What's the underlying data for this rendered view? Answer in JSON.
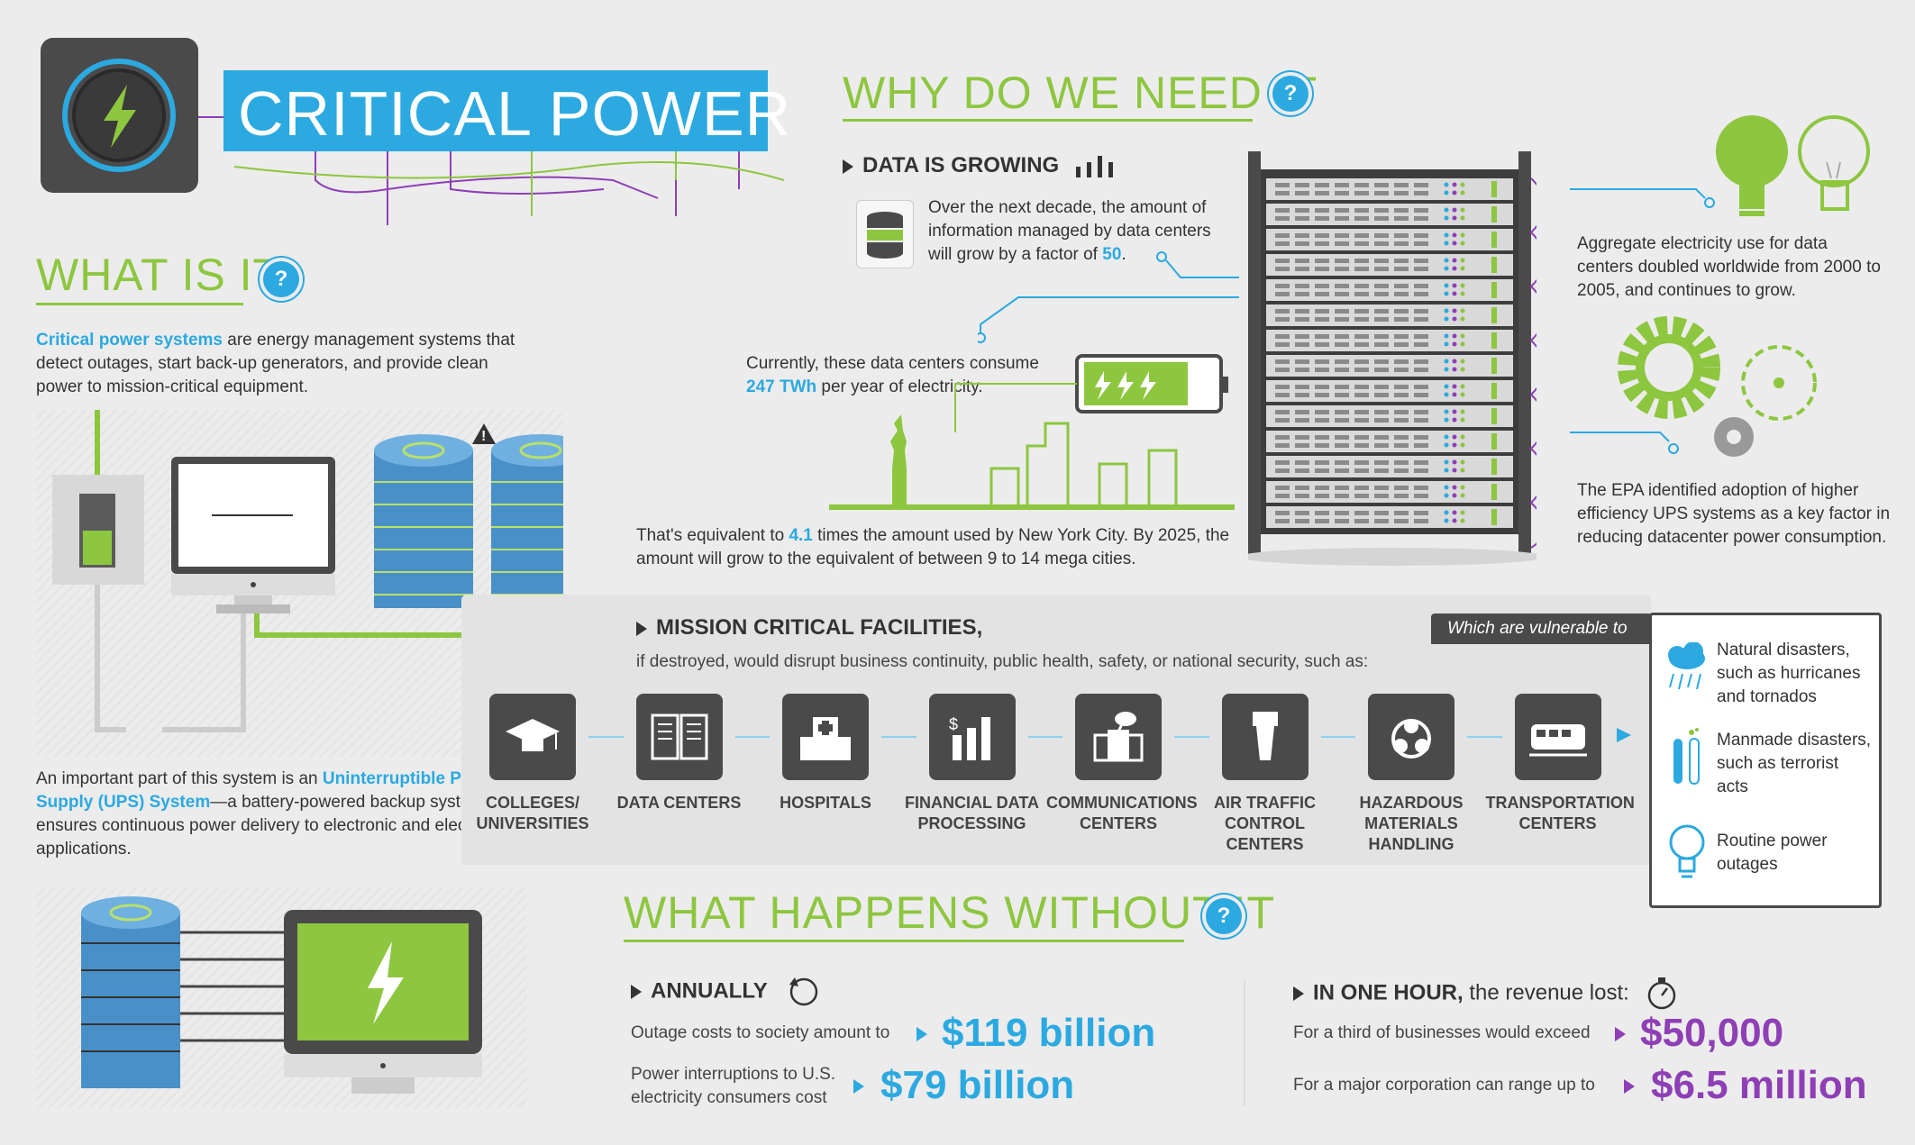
{
  "header": {
    "title": "CRITICAL POWER",
    "colors": {
      "accent_green": "#8dc63f",
      "accent_blue": "#2ba9e0",
      "accent_purple": "#8e3fb5",
      "dark": "#4a4a4a"
    }
  },
  "what_is_it": {
    "heading": "WHAT IS IT",
    "q": "?",
    "intro_highlight": "Critical power systems",
    "intro_rest": " are energy management systems that detect outages, start back-up generators, and provide clean power to mission-critical equipment.",
    "ups_lead": "An important part of this system is an ",
    "ups_highlight": "Uninterruptible Power Supply (UPS) System",
    "ups_rest": "—a battery-powered backup system that ensures continuous power delivery to electronic and electrical applications."
  },
  "why": {
    "heading": "WHY DO WE NEED IT",
    "q": "?",
    "data_growing": "DATA IS GROWING",
    "growth_text": "Over the next decade, the amount of information managed by data centers will grow by a factor of ",
    "growth_factor": "50",
    "growth_end": ".",
    "consume_text": "Currently, these data centers consume ",
    "consume_value": "247 TWh",
    "consume_end": " per year of electricity.",
    "nyc_text_1": "That's equivalent to ",
    "nyc_value": "4.1",
    "nyc_text_2": " times the amount used by New York City. By 2025, the amount will grow to the equivalent of between 9 to 14 mega cities.",
    "aggregate_text": "Aggregate electricity use for data centers doubled worldwide from 2000 to 2005, and continues to grow.",
    "epa_text": "The EPA identified adoption of higher efficiency UPS systems as a key factor in reducing datacenter power consumption."
  },
  "facilities": {
    "heading": "MISSION CRITICAL FACILITIES,",
    "subheading": "if destroyed, would disrupt business continuity, public health, safety, or national security, such as:",
    "items": [
      {
        "label": "COLLEGES/ UNIVERSITIES",
        "icon": "graduation-cap-icon"
      },
      {
        "label": "DATA CENTERS",
        "icon": "server-icon"
      },
      {
        "label": "HOSPITALS",
        "icon": "hospital-icon"
      },
      {
        "label": "FINANCIAL DATA PROCESSING",
        "icon": "bar-chart-icon"
      },
      {
        "label": "COMMUNICATIONS CENTERS",
        "icon": "satellite-dish-icon"
      },
      {
        "label": "AIR TRAFFIC CONTROL CENTERS",
        "icon": "control-tower-icon"
      },
      {
        "label": "HAZARDOUS MATERIALS HANDLING",
        "icon": "biohazard-icon"
      },
      {
        "label": "TRANSPORTATION CENTERS",
        "icon": "train-icon"
      }
    ],
    "vulnerable_tab": "Which are vulnerable to",
    "vulnerable": [
      {
        "text": "Natural disasters, such as hurricanes and tornados",
        "icon": "storm-cloud-icon"
      },
      {
        "text": "Manmade disasters, such as terrorist acts",
        "icon": "test-tube-icon"
      },
      {
        "text": "Routine power outages",
        "icon": "lightbulb-icon"
      }
    ]
  },
  "without": {
    "heading": "WHAT HAPPENS WITHOUT IT",
    "q": "?",
    "annually": "ANNUALLY",
    "outage_text": "Outage costs to society amount to",
    "outage_value": "$119 billion",
    "interrupt_text": "Power interruptions to U.S. electricity consumers cost",
    "interrupt_value": "$79 billion",
    "one_hour_bold": "IN ONE HOUR,",
    "one_hour_rest": " the revenue lost:",
    "third_text": "For a third of businesses would exceed",
    "third_value": "$50,000",
    "major_text": "For a major corporation can range up to",
    "major_value": "$6.5 million"
  }
}
